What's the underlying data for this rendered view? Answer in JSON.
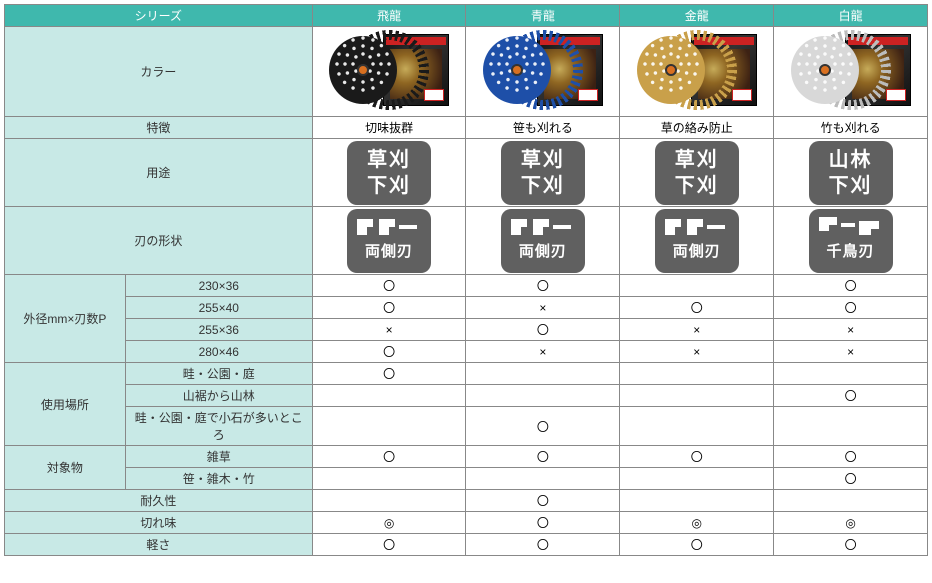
{
  "colors": {
    "header_bg": "#3fb8ad",
    "header_fg": "#ffffff",
    "label_bg": "#c8e9e6",
    "border": "#888888",
    "icon_bg": "#606060",
    "icon_fg": "#ffffff"
  },
  "header": {
    "series": "シリーズ",
    "products": [
      "飛龍",
      "青龍",
      "金龍",
      "白龍"
    ]
  },
  "product_colors": {
    "blades": [
      "#1a1a1a",
      "#1e4fa8",
      "#c9a04a",
      "#d8d8d8"
    ],
    "teeth_borders": [
      "#1a1a1a",
      "#1e4fa8",
      "#c9a04a",
      "#bcbcbc"
    ]
  },
  "rows": {
    "color": "カラー",
    "feature": {
      "label": "特徴",
      "values": [
        "切味抜群",
        "笹も刈れる",
        "草の絡み防止",
        "竹も刈れる"
      ]
    },
    "usage": {
      "label": "用途",
      "icons": [
        {
          "line1": "草刈",
          "line2": "下刈"
        },
        {
          "line1": "草刈",
          "line2": "下刈"
        },
        {
          "line1": "草刈",
          "line2": "下刈"
        },
        {
          "line1": "山林",
          "line2": "下刈"
        }
      ]
    },
    "blade_shape": {
      "label": "刃の形状",
      "icons": [
        {
          "text": "両側刃",
          "shape": "double"
        },
        {
          "text": "両側刃",
          "shape": "double"
        },
        {
          "text": "両側刃",
          "shape": "double"
        },
        {
          "text": "千鳥刃",
          "shape": "stagger"
        }
      ]
    },
    "size_group": {
      "label": "外径mm×刃数P",
      "sizes": [
        {
          "size": "230×36",
          "marks": [
            "〇",
            "〇",
            "",
            "〇"
          ]
        },
        {
          "size": "255×40",
          "marks": [
            "〇",
            "×",
            "〇",
            "〇"
          ]
        },
        {
          "size": "255×36",
          "marks": [
            "×",
            "〇",
            "×",
            "×"
          ]
        },
        {
          "size": "280×46",
          "marks": [
            "〇",
            "×",
            "×",
            "×"
          ]
        }
      ]
    },
    "place_group": {
      "label": "使用場所",
      "places": [
        {
          "place": "畦・公園・庭",
          "marks": [
            "〇",
            "",
            "",
            ""
          ]
        },
        {
          "place": "山裾から山林",
          "marks": [
            "",
            "",
            "",
            "〇"
          ]
        },
        {
          "place": "畦・公園・庭で小石が多いところ",
          "marks": [
            "",
            "〇",
            "",
            ""
          ]
        }
      ]
    },
    "target_group": {
      "label": "対象物",
      "targets": [
        {
          "target": "雑草",
          "marks": [
            "〇",
            "〇",
            "〇",
            "〇"
          ]
        },
        {
          "target": "笹・雑木・竹",
          "marks": [
            "",
            "",
            "",
            "〇"
          ]
        }
      ]
    },
    "durability": {
      "label": "耐久性",
      "marks": [
        "",
        "〇",
        "",
        ""
      ]
    },
    "sharpness": {
      "label": "切れ味",
      "marks": [
        "◎",
        "〇",
        "◎",
        "◎"
      ]
    },
    "lightness": {
      "label": "軽さ",
      "marks": [
        "〇",
        "〇",
        "〇",
        "〇"
      ]
    }
  }
}
